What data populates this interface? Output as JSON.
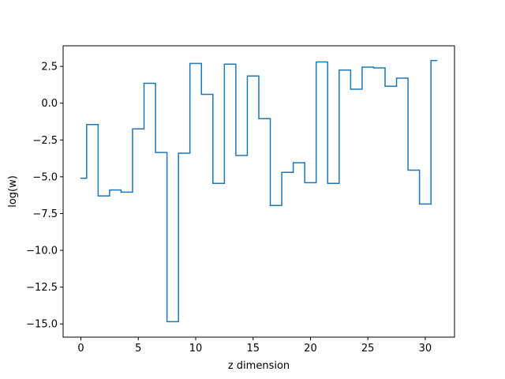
{
  "chart_data": {
    "type": "line",
    "drawstyle": "steps-mid",
    "xlabel": "z dimension",
    "ylabel": "log(w)",
    "xlim": [
      -1.55,
      32.55
    ],
    "ylim": [
      -15.9,
      3.9
    ],
    "xticks": [
      0,
      5,
      10,
      15,
      20,
      25,
      30
    ],
    "xtick_labels": [
      "0",
      "5",
      "10",
      "15",
      "20",
      "25",
      "30"
    ],
    "yticks": [
      -15.0,
      -12.5,
      -10.0,
      -7.5,
      -5.0,
      -2.5,
      0.0,
      2.5
    ],
    "ytick_labels": [
      "−15.0",
      "−12.5",
      "−10.0",
      "−7.5",
      "−5.0",
      "−2.5",
      "0.0",
      "2.5"
    ],
    "grid": false,
    "series": [
      {
        "color": "#1f77b4",
        "x": [
          0,
          1,
          2,
          3,
          4,
          5,
          6,
          7,
          8,
          9,
          10,
          11,
          12,
          13,
          14,
          15,
          16,
          17,
          18,
          19,
          20,
          21,
          22,
          23,
          24,
          25,
          26,
          27,
          28,
          29,
          30,
          31
        ],
        "values": [
          -5.1,
          -1.45,
          -6.3,
          -5.9,
          -6.05,
          -1.75,
          1.35,
          -3.35,
          -14.85,
          -3.4,
          2.7,
          0.6,
          -5.45,
          2.65,
          -3.55,
          1.85,
          -1.05,
          -6.95,
          -4.7,
          -4.05,
          -5.4,
          2.8,
          -5.45,
          2.25,
          0.95,
          2.45,
          2.4,
          1.15,
          1.7,
          -4.55,
          -6.85,
          2.9
        ]
      }
    ]
  }
}
